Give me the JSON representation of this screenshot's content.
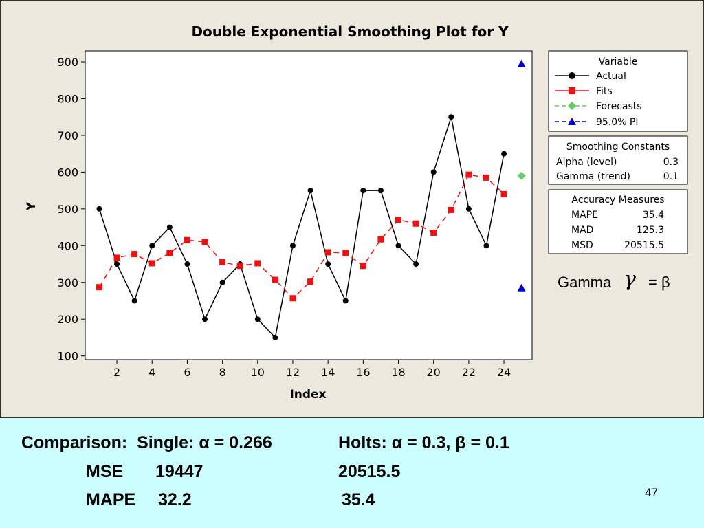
{
  "slide": {
    "page_number": "47"
  },
  "chart_data": {
    "type": "line",
    "title": "Double Exponential Smoothing Plot for Y",
    "xlabel": "Index",
    "ylabel": "Y",
    "xlim": [
      0.2,
      25.6
    ],
    "ylim": [
      90,
      930
    ],
    "x_ticks": [
      2,
      4,
      6,
      8,
      10,
      12,
      14,
      16,
      18,
      20,
      22,
      24
    ],
    "y_ticks": [
      100,
      200,
      300,
      400,
      500,
      600,
      700,
      800,
      900
    ],
    "grid": false,
    "legend_position": "right",
    "series": [
      {
        "name": "Actual",
        "color": "#000000",
        "marker": "circle",
        "line": "solid",
        "x": [
          1,
          2,
          3,
          4,
          5,
          6,
          7,
          8,
          9,
          10,
          11,
          12,
          13,
          14,
          15,
          16,
          17,
          18,
          19,
          20,
          21,
          22,
          23,
          24
        ],
        "values": [
          500,
          350,
          250,
          400,
          450,
          350,
          200,
          300,
          350,
          200,
          150,
          400,
          550,
          350,
          250,
          550,
          550,
          400,
          350,
          600,
          750,
          500,
          400,
          650
        ]
      },
      {
        "name": "Fits",
        "color": "#ee1111",
        "marker": "square",
        "line": "dashed",
        "x": [
          1,
          2,
          3,
          4,
          5,
          6,
          7,
          8,
          9,
          10,
          11,
          12,
          13,
          14,
          15,
          16,
          17,
          18,
          19,
          20,
          21,
          22,
          23,
          24
        ],
        "values": [
          287,
          367,
          377,
          352,
          380,
          415,
          410,
          355,
          345,
          352,
          307,
          257,
          302,
          382,
          380,
          345,
          417,
          470,
          460,
          435,
          497,
          593,
          585,
          540
        ]
      },
      {
        "name": "Forecasts",
        "color": "#66cc66",
        "marker": "diamond",
        "line": "dashed",
        "x": [
          25
        ],
        "values": [
          590
        ]
      },
      {
        "name": "95.0% PI",
        "color": "#0000cc",
        "marker": "triangle",
        "line": "dashed",
        "x": [
          25,
          25
        ],
        "values": [
          895,
          285
        ]
      }
    ],
    "legend_title": "Variable",
    "smoothing_constants": {
      "title": "Smoothing Constants",
      "rows": [
        {
          "label": "Alpha (level)",
          "value": "0.3"
        },
        {
          "label": "Gamma (trend)",
          "value": "0.1"
        }
      ]
    },
    "accuracy_measures": {
      "title": "Accuracy  Measures",
      "rows": [
        {
          "label": "MAPE",
          "value": "35.4"
        },
        {
          "label": "MAD",
          "value": "125.3"
        },
        {
          "label": "MSD",
          "value": "20515.5"
        }
      ]
    },
    "gamma_note": {
      "label": "Gamma",
      "symbol": "γ",
      "equals": "= β"
    }
  },
  "comparison": {
    "row1_left": "Comparison:  Single: α = 0.266",
    "row1_right": "Holts: α = 0.3, β = 0.1",
    "mse_label": "MSE",
    "mse_single": "19447",
    "mse_holts": "20515.5",
    "mape_label": "MAPE",
    "mape_single": "32.2",
    "mape_holts": "35.4"
  }
}
